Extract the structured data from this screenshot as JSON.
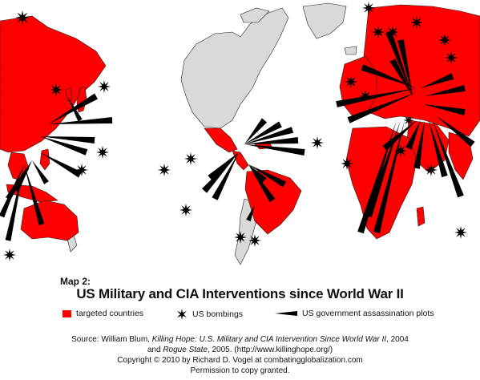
{
  "colors": {
    "ocean": "#ffffff",
    "untargeted_land": "#d9d9d9",
    "targeted_land": "#ff0000",
    "border": "#222222",
    "marker": "#000000"
  },
  "map": {
    "subtitle": "Map 2:",
    "title": "US Military and CIA Interventions since World War II",
    "targeted_regions": [
      "Russia",
      "China",
      "Korea",
      "Japan",
      "Southeast Asia",
      "Indonesia",
      "Philippines",
      "Australia",
      "Middle East",
      "Africa",
      "Europe",
      "Central America",
      "Caribbean",
      "South America"
    ]
  },
  "legend": {
    "targeted_label": "targeted countries",
    "bombing_label": "US bombings",
    "bombing_icon": "starburst-icon",
    "assassination_label": "US government assassination plots",
    "assassination_icon": "wedge-icon"
  },
  "credits": {
    "source_prefix": "Source:  William Blum, ",
    "source_book1": "Killing Hope: U.S. Military and CIA Intervention Since World War II",
    "source_mid": ", 2004",
    "source_and": "and ",
    "source_book2": "Rogue State",
    "source_end": ", 2005. (http://www.killinghope.org/)",
    "copyright": "Copyright  ©  2010 by Richard D. Vogel at combatingglobalization.com",
    "permission": "Permission to copy granted."
  }
}
